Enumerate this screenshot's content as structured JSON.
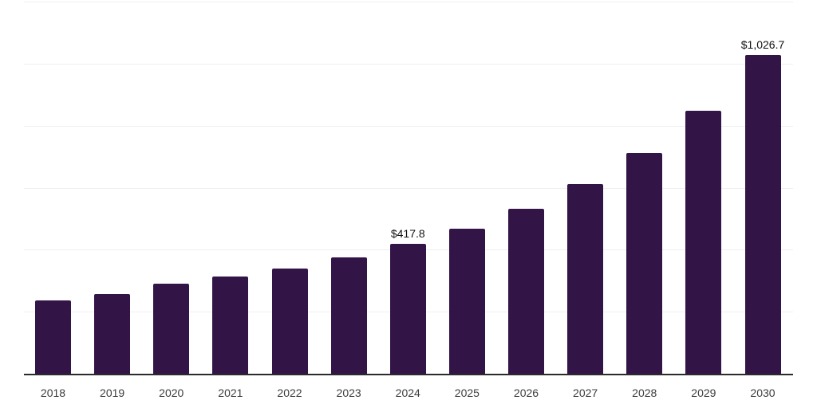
{
  "chart_data": {
    "type": "bar",
    "categories": [
      "2018",
      "2019",
      "2020",
      "2021",
      "2022",
      "2023",
      "2024",
      "2025",
      "2026",
      "2027",
      "2028",
      "2029",
      "2030"
    ],
    "values": [
      235.7,
      258.0,
      291.5,
      313.5,
      339.0,
      375.0,
      417.8,
      467.0,
      531.0,
      611.5,
      713.0,
      847.0,
      1026.7
    ],
    "annotations": [
      {
        "category": "2024",
        "text": "$417.8"
      },
      {
        "category": "2030",
        "text": "$1,026.7"
      }
    ],
    "xlabel": "",
    "ylabel": "",
    "ylim": [
      0,
      1200
    ],
    "gridline_step": 200,
    "grid": true,
    "legend_visible": false,
    "y_tick_labels_visible": false,
    "colors": {
      "bar": "#331447",
      "gridline": "#efefef",
      "axis": "#2b2b2b",
      "annotation_text": "#111111",
      "tick_text": "#3d3d3d",
      "background": "#ffffff"
    }
  }
}
